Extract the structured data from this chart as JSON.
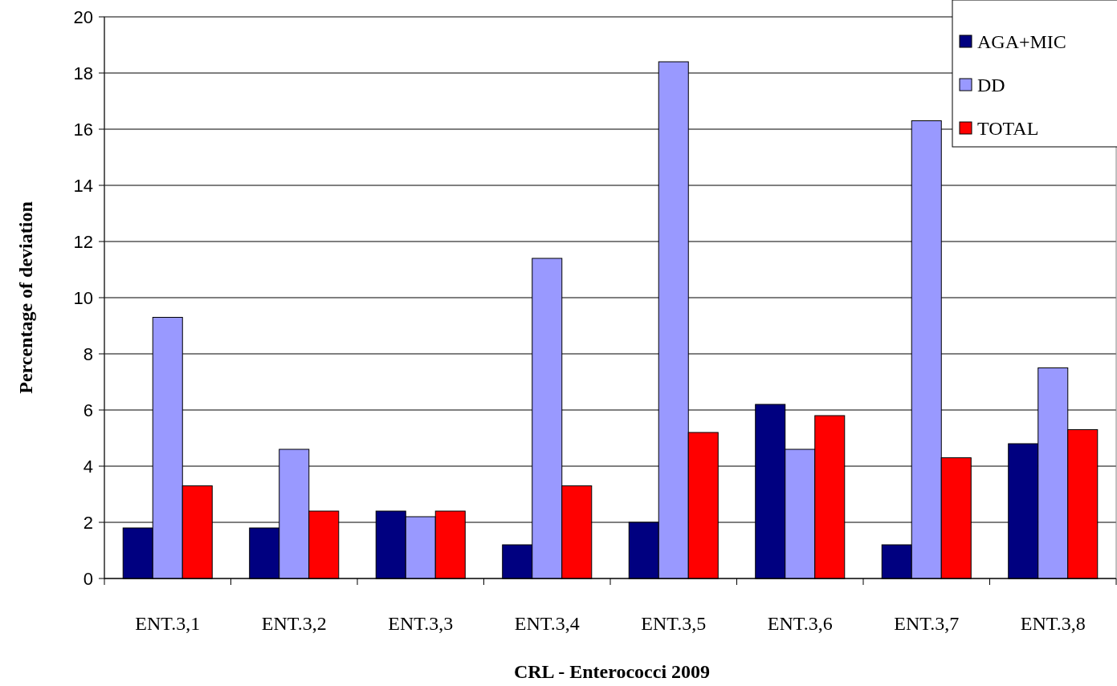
{
  "chart_data": {
    "type": "bar",
    "title": "CRL - Enterococci 2009",
    "ylabel": "Percentage of deviation",
    "categories": [
      "ENT.3,1",
      "ENT.3,2",
      "ENT.3,3",
      "ENT.3,4",
      "ENT.3,5",
      "ENT.3,6",
      "ENT.3,7",
      "ENT.3,8"
    ],
    "series": [
      {
        "name": "AGA+MIC",
        "color": "#000080",
        "values": [
          1.8,
          1.8,
          2.4,
          1.2,
          2.0,
          6.2,
          1.2,
          4.8
        ]
      },
      {
        "name": "DD",
        "color": "#9999ff",
        "values": [
          9.3,
          4.6,
          2.2,
          11.4,
          18.4,
          4.6,
          16.3,
          7.5
        ]
      },
      {
        "name": "TOTAL",
        "color": "#ff0000",
        "values": [
          3.3,
          2.4,
          2.4,
          3.3,
          5.2,
          5.8,
          4.3,
          5.3
        ]
      }
    ],
    "ylim": [
      0,
      20
    ],
    "yticks": [
      0,
      2,
      4,
      6,
      8,
      10,
      12,
      14,
      16,
      18,
      20
    ],
    "grid": "y",
    "legend": "top right"
  }
}
